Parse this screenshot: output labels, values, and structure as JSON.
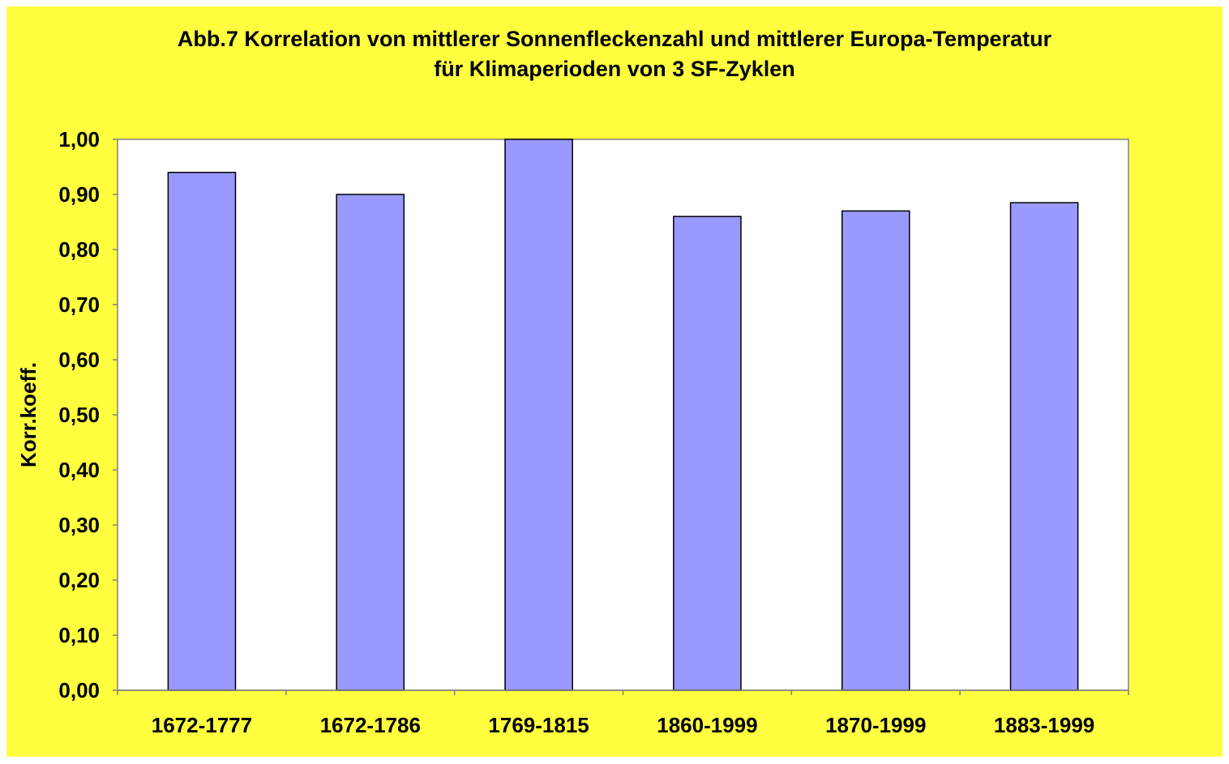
{
  "chart_data": {
    "type": "bar",
    "title_line1": "Abb.7 Korrelation von mittlerer Sonnenfleckenzahl und mittlerer Europa-Temperatur",
    "title_line2": "für Klimaperioden von 3 SF-Zyklen",
    "ylabel": "Korr.koeff.",
    "xlabel": "",
    "categories": [
      "1672-1777",
      "1672-1786",
      "1769-1815",
      "1860-1999",
      "1870-1999",
      "1883-1999"
    ],
    "values": [
      0.94,
      0.9,
      1.0,
      0.86,
      0.87,
      0.885
    ],
    "ylim": [
      0,
      1
    ],
    "yticks": [
      "0,00",
      "0,10",
      "0,20",
      "0,30",
      "0,40",
      "0,50",
      "0,60",
      "0,70",
      "0,80",
      "0,90",
      "1,00"
    ],
    "grid": false,
    "legend": "none",
    "colors": {
      "background": "#ffff40",
      "plot_area": "#ffffff",
      "bar_fill": "#9999ff",
      "bar_stroke": "#000000"
    }
  }
}
